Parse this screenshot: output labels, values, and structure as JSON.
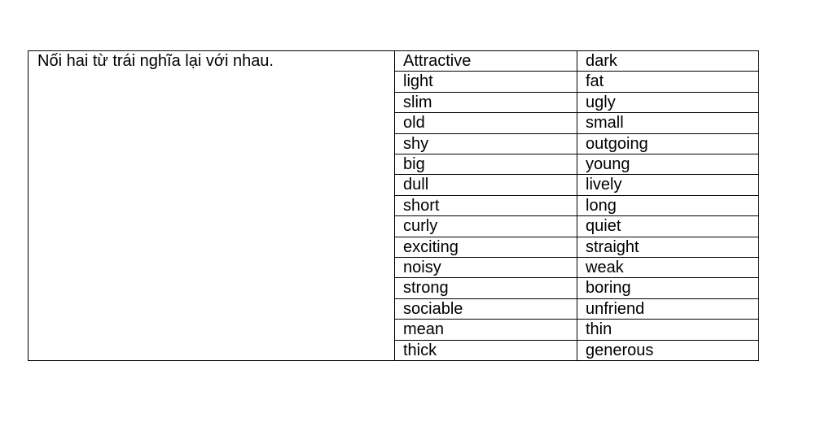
{
  "instruction": "Nối hai từ trái nghĩa lại với nhau.",
  "rows": [
    [
      "Attractive",
      "dark"
    ],
    [
      "light",
      "fat"
    ],
    [
      "slim",
      "ugly"
    ],
    [
      "old",
      "small"
    ],
    [
      "shy",
      "outgoing"
    ],
    [
      "big",
      "young"
    ],
    [
      "dull",
      "lively"
    ],
    [
      "short",
      "long"
    ],
    [
      "curly",
      "quiet"
    ],
    [
      "exciting",
      "straight"
    ],
    [
      "noisy",
      "weak"
    ],
    [
      "strong",
      "boring"
    ],
    [
      "sociable",
      "unfriend"
    ],
    [
      "mean",
      "thin"
    ],
    [
      "thick",
      "generous"
    ]
  ]
}
